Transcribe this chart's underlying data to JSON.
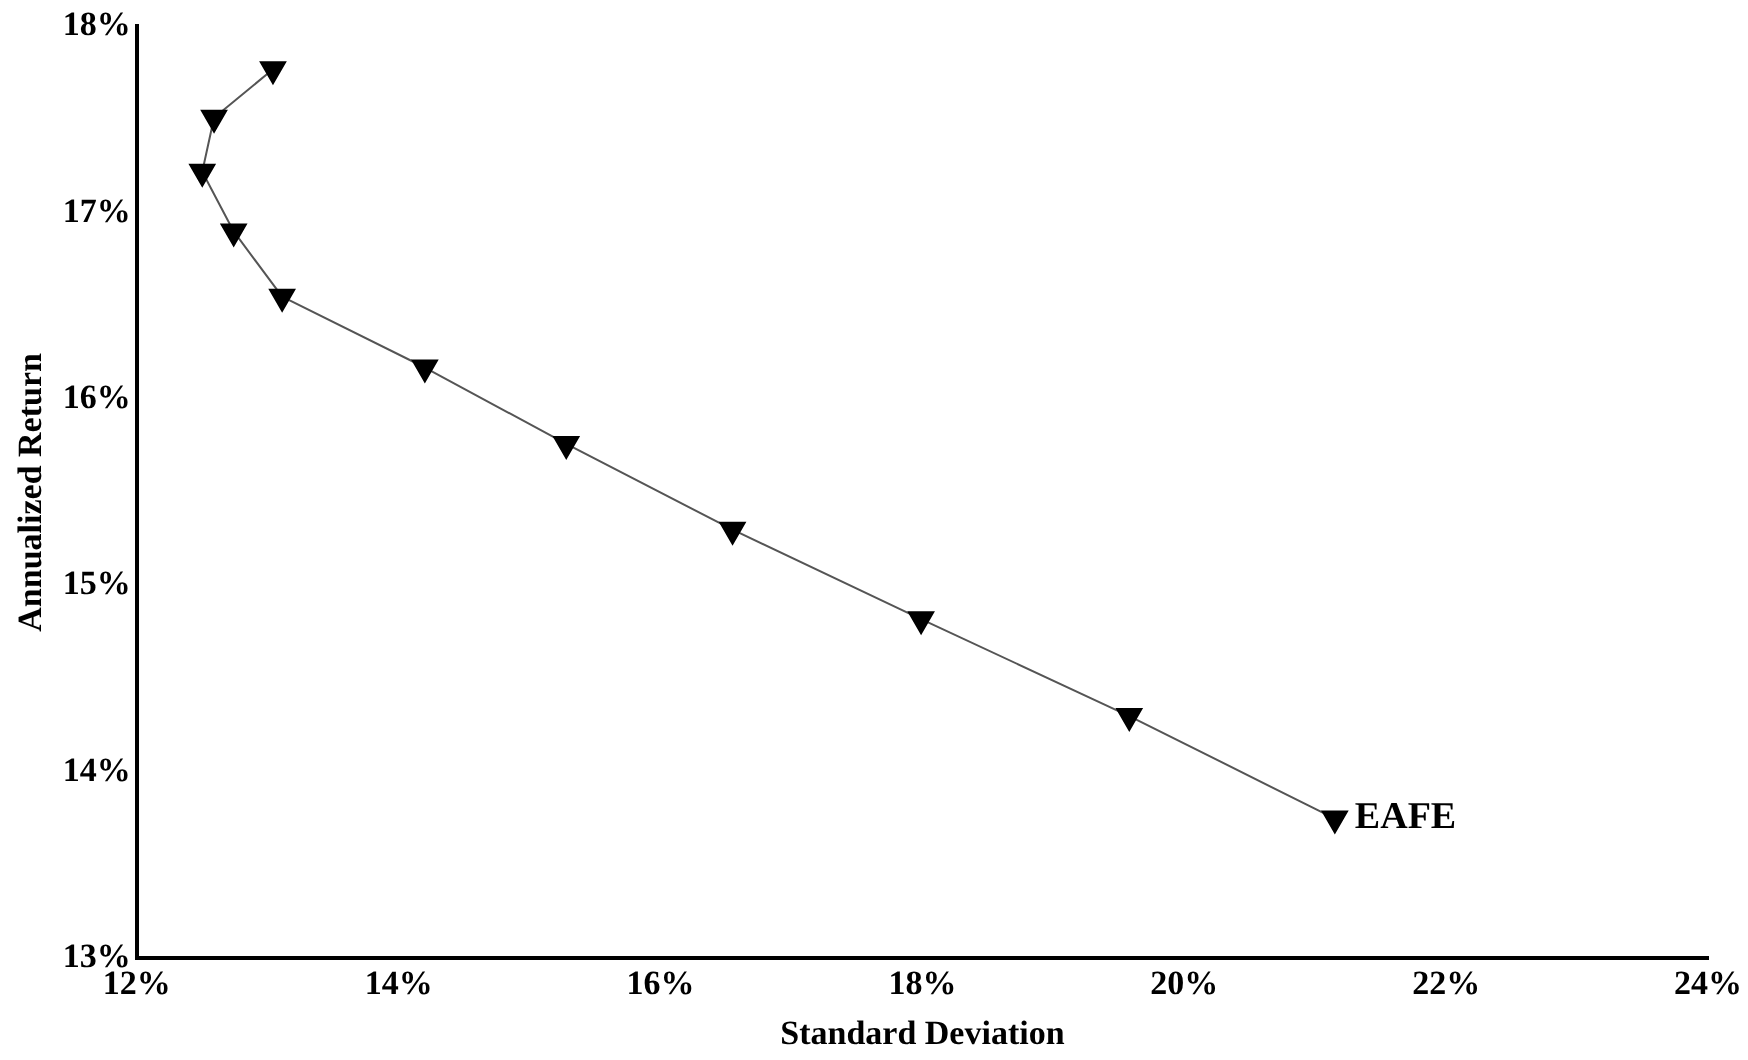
{
  "chart_data": {
    "type": "line",
    "xlabel": "Standard Deviation",
    "ylabel": "Annualized Return",
    "x": [
      13.04,
      12.59,
      12.5,
      12.74,
      13.11,
      14.2,
      15.28,
      16.55,
      17.99,
      19.58,
      21.15
    ],
    "series": [
      {
        "color": "#000000",
        "values": [
          17.77,
          17.51,
          17.22,
          16.9,
          16.55,
          16.17,
          15.76,
          15.3,
          14.82,
          14.3,
          13.75
        ]
      }
    ],
    "xlim": [
      12,
      24
    ],
    "xticks": [
      {
        "value": 12,
        "label": "12%"
      },
      {
        "value": 14,
        "label": "14%"
      },
      {
        "value": 16,
        "label": "16%"
      },
      {
        "value": 18,
        "label": "18%"
      },
      {
        "value": 20,
        "label": "20%"
      },
      {
        "value": 22,
        "label": "22%"
      },
      {
        "value": 24,
        "label": "24%"
      }
    ],
    "ylim": [
      13,
      18
    ],
    "yticks": [
      {
        "value": 13,
        "label": "13%"
      },
      {
        "value": 14,
        "label": "14%"
      },
      {
        "value": 15,
        "label": "15%"
      },
      {
        "value": 16,
        "label": "16%"
      },
      {
        "value": 17,
        "label": "17%"
      },
      {
        "value": 18,
        "label": "18%"
      }
    ],
    "annotations": [
      {
        "text": "EAFE",
        "x": 21.15,
        "y": 13.75
      }
    ],
    "marker": "triangle",
    "line_style": "solid",
    "grid": false,
    "legend": false
  }
}
